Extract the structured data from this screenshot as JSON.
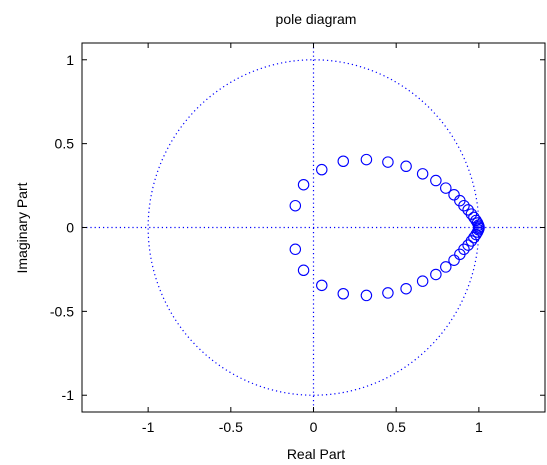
{
  "chart_data": {
    "type": "scatter",
    "title": "pole diagram",
    "xlabel": "Real Part",
    "ylabel": "Imaginary Part",
    "xlim": [
      -1.4,
      1.4
    ],
    "ylim": [
      -1.1,
      1.1
    ],
    "xticks": [
      "-1",
      "-0.5",
      "0",
      "0.5",
      "1"
    ],
    "yticks": [
      "-1",
      "-0.5",
      "0",
      "0.5",
      "1"
    ],
    "grid": false,
    "unit_circle": true,
    "marker": "circle-open",
    "colors": {
      "marker": "#0000ff",
      "reference": "#0000ff",
      "axes": "#000000"
    },
    "points": [
      [
        -0.11,
        0.13
      ],
      [
        -0.06,
        0.255
      ],
      [
        0.05,
        0.345
      ],
      [
        0.18,
        0.395
      ],
      [
        0.32,
        0.405
      ],
      [
        0.45,
        0.39
      ],
      [
        0.56,
        0.365
      ],
      [
        0.66,
        0.32
      ],
      [
        0.74,
        0.28
      ],
      [
        0.8,
        0.235
      ],
      [
        0.85,
        0.195
      ],
      [
        0.885,
        0.16
      ],
      [
        0.91,
        0.13
      ],
      [
        0.935,
        0.105
      ],
      [
        0.955,
        0.08
      ],
      [
        0.97,
        0.06
      ],
      [
        0.983,
        0.042
      ],
      [
        0.992,
        0.027
      ],
      [
        0.998,
        0.014
      ],
      [
        1.001,
        0.004
      ],
      [
        -0.11,
        -0.13
      ],
      [
        -0.06,
        -0.255
      ],
      [
        0.05,
        -0.345
      ],
      [
        0.18,
        -0.395
      ],
      [
        0.32,
        -0.405
      ],
      [
        0.45,
        -0.39
      ],
      [
        0.56,
        -0.365
      ],
      [
        0.66,
        -0.32
      ],
      [
        0.74,
        -0.28
      ],
      [
        0.8,
        -0.235
      ],
      [
        0.85,
        -0.195
      ],
      [
        0.885,
        -0.16
      ],
      [
        0.91,
        -0.13
      ],
      [
        0.935,
        -0.105
      ],
      [
        0.955,
        -0.08
      ],
      [
        0.97,
        -0.06
      ],
      [
        0.983,
        -0.042
      ],
      [
        0.992,
        -0.027
      ],
      [
        0.998,
        -0.014
      ],
      [
        1.001,
        -0.004
      ]
    ]
  }
}
